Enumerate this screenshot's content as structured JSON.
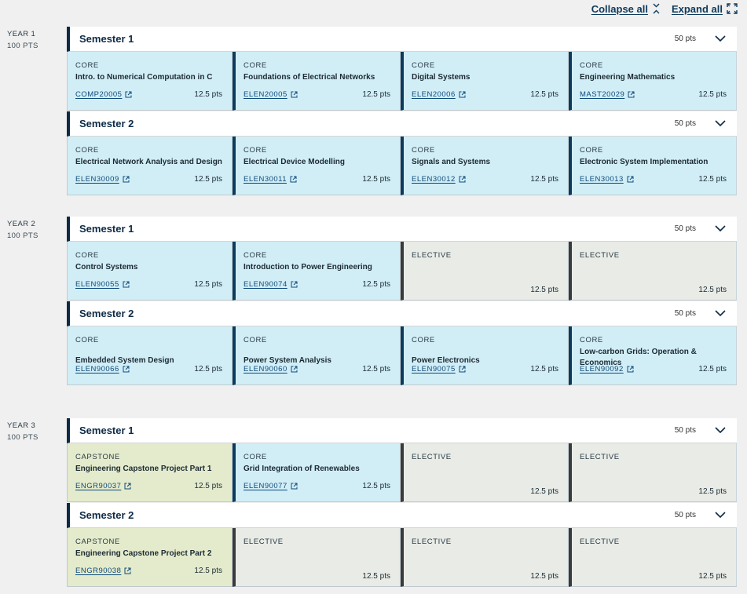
{
  "controls": {
    "collapse_label": "Collapse all",
    "expand_label": "Expand all"
  },
  "years": [
    {
      "label": "YEAR 1",
      "pts": "100 PTS",
      "semesters": [
        {
          "title": "Semester 1",
          "pts": "50 pts",
          "units": [
            {
              "type": "CORE",
              "name": "Intro. to Numerical Computation in C",
              "code": "COMP20005",
              "pts": "12.5 pts"
            },
            {
              "type": "CORE",
              "name": "Foundations of Electrical Networks",
              "code": "ELEN20005",
              "pts": "12.5 pts"
            },
            {
              "type": "CORE",
              "name": "Digital Systems",
              "code": "ELEN20006",
              "pts": "12.5 pts"
            },
            {
              "type": "CORE",
              "name": "Engineering Mathematics",
              "code": "MAST20029",
              "pts": "12.5 pts"
            }
          ]
        },
        {
          "title": "Semester 2",
          "pts": "50 pts",
          "units": [
            {
              "type": "CORE",
              "name": "Electrical Network Analysis and Design",
              "code": "ELEN30009",
              "pts": "12.5 pts"
            },
            {
              "type": "CORE",
              "name": "Electrical Device Modelling",
              "code": "ELEN30011",
              "pts": "12.5 pts"
            },
            {
              "type": "CORE",
              "name": "Signals and Systems",
              "code": "ELEN30012",
              "pts": "12.5 pts"
            },
            {
              "type": "CORE",
              "name": "Electronic System Implementation",
              "code": "ELEN30013",
              "pts": "12.5 pts"
            }
          ]
        }
      ]
    },
    {
      "label": "YEAR 2",
      "pts": "100 PTS",
      "semesters": [
        {
          "title": "Semester 1",
          "pts": "50 pts",
          "units": [
            {
              "type": "CORE",
              "name": "Control Systems",
              "code": "ELEN90055",
              "pts": "12.5 pts"
            },
            {
              "type": "CORE",
              "name": "Introduction to Power Engineering",
              "code": "ELEN90074",
              "pts": "12.5 pts"
            },
            {
              "type": "ELECTIVE",
              "pts": "12.5 pts"
            },
            {
              "type": "ELECTIVE",
              "pts": "12.5 pts"
            }
          ]
        },
        {
          "title": "Semester 2",
          "pts": "50 pts",
          "units": [
            {
              "type": "CORE",
              "name": "Embedded System Design",
              "code": "ELEN90066",
              "pts": "12.5 pts"
            },
            {
              "type": "CORE",
              "name": "Power System Analysis",
              "code": "ELEN90060",
              "pts": "12.5 pts"
            },
            {
              "type": "CORE",
              "name": "Power Electronics",
              "code": "ELEN90075",
              "pts": "12.5 pts"
            },
            {
              "type": "CORE",
              "name": "Low-carbon Grids: Operation & Economics",
              "code": "ELEN90092",
              "pts": "12.5 pts"
            }
          ]
        }
      ]
    },
    {
      "label": "YEAR 3",
      "pts": "100 PTS",
      "semesters": [
        {
          "title": "Semester 1",
          "pts": "50 pts",
          "units": [
            {
              "type": "CAPSTONE",
              "name": "Engineering Capstone Project Part 1",
              "code": "ENGR90037",
              "pts": "12.5 pts"
            },
            {
              "type": "CORE",
              "name": "Grid Integration of Renewables",
              "code": "ELEN90077",
              "pts": "12.5 pts"
            },
            {
              "type": "ELECTIVE",
              "pts": "12.5 pts"
            },
            {
              "type": "ELECTIVE",
              "pts": "12.5 pts"
            }
          ]
        },
        {
          "title": "Semester 2",
          "pts": "50 pts",
          "units": [
            {
              "type": "CAPSTONE",
              "name": "Engineering Capstone Project Part 2",
              "code": "ENGR90038",
              "pts": "12.5 pts"
            },
            {
              "type": "ELECTIVE",
              "pts": "12.5 pts"
            },
            {
              "type": "ELECTIVE",
              "pts": "12.5 pts"
            },
            {
              "type": "ELECTIVE",
              "pts": "12.5 pts"
            }
          ]
        }
      ]
    }
  ]
}
